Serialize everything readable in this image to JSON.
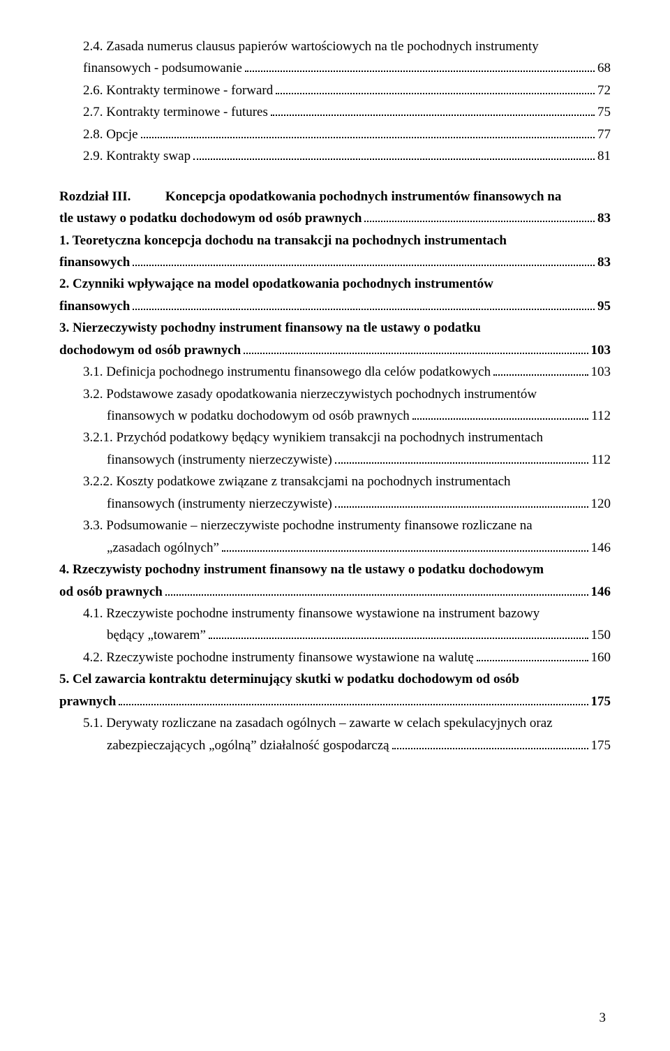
{
  "toc": [
    {
      "lvl": 1,
      "bold": false,
      "multi": [
        "2.4. Zasada numerus clausus papierów wartościowych na tle pochodnych instrumenty"
      ],
      "last": "finansowych - podsumowanie",
      "page": "68"
    },
    {
      "lvl": 1,
      "bold": false,
      "last": "2.6. Kontrakty terminowe - forward",
      "page": "72"
    },
    {
      "lvl": 1,
      "bold": false,
      "last": "2.7. Kontrakty terminowe - futures",
      "page": "75"
    },
    {
      "lvl": 1,
      "bold": false,
      "last": "2.8. Opcje",
      "page": "77"
    },
    {
      "lvl": 1,
      "bold": false,
      "last": "2.9. Kontrakty swap",
      "page": "81"
    }
  ],
  "chapter": {
    "label": "Rozdział III.",
    "title_multi": "Koncepcja opodatkowania pochodnych instrumentów finansowych na",
    "title_last": "tle ustawy o podatku dochodowym od osób prawnych",
    "page": "83"
  },
  "toc2": [
    {
      "lvl": 0,
      "bold": true,
      "multi": [
        "1.   Teoretyczna  koncepcja  dochodu  na  transakcji  na  pochodnych  instrumentach"
      ],
      "last": "finansowych",
      "page": "83"
    },
    {
      "lvl": 0,
      "bold": true,
      "multi": [
        "2.   Czynniki   wpływające   na   model   opodatkowania   pochodnych   instrumentów"
      ],
      "last": "finansowych",
      "page": "95"
    },
    {
      "lvl": 0,
      "bold": true,
      "multi": [
        "3.   Nierzeczywisty   pochodny   instrument   finansowy   na   tle   ustawy   o   podatku"
      ],
      "last": "dochodowym od osób prawnych",
      "page": "103"
    },
    {
      "lvl": 1,
      "bold": false,
      "last": "3.1. Definicja pochodnego instrumentu finansowego dla celów podatkowych",
      "page": "103"
    },
    {
      "lvl": 1,
      "bold": false,
      "multi": [
        "3.2.  Podstawowe  zasady  opodatkowania  nierzeczywistych  pochodnych  instrumentów"
      ],
      "last_indent": 2,
      "last": "finansowych w podatku dochodowym od osób prawnych",
      "page": "112"
    },
    {
      "lvl": 1,
      "bold": false,
      "multi": [
        "3.2.1. Przychód podatkowy będący wynikiem transakcji na pochodnych instrumentach"
      ],
      "last_indent": 2,
      "last": "finansowych (instrumenty nierzeczywiste)",
      "page": "112"
    },
    {
      "lvl": 1,
      "bold": false,
      "multi": [
        "3.2.2.  Koszty  podatkowe  związane  z  transakcjami  na  pochodnych  instrumentach"
      ],
      "last_indent": 2,
      "last": "finansowych (instrumenty nierzeczywiste)",
      "page": "120"
    },
    {
      "lvl": 1,
      "bold": false,
      "multi": [
        "3.3.  Podsumowanie  –  nierzeczywiste  pochodne  instrumenty  finansowe  rozliczane  na"
      ],
      "last_indent": 2,
      "last": "„zasadach ogólnych”",
      "page": "146"
    },
    {
      "lvl": 0,
      "bold": true,
      "multi": [
        "4.   Rzeczywisty pochodny instrument finansowy na tle ustawy o podatku dochodowym"
      ],
      "last": "od osób prawnych",
      "page": "146"
    },
    {
      "lvl": 1,
      "bold": false,
      "multi": [
        "4.1.  Rzeczywiste  pochodne  instrumenty  finansowe  wystawione  na  instrument  bazowy"
      ],
      "last_indent": 2,
      "last": "będący „towarem”",
      "page": "150"
    },
    {
      "lvl": 1,
      "bold": false,
      "last": "4.2. Rzeczywiste pochodne instrumenty finansowe wystawione na walutę",
      "page": "160"
    },
    {
      "lvl": 0,
      "bold": true,
      "multi": [
        "5.   Cel  zawarcia  kontraktu  determinujący  skutki  w  podatku  dochodowym  od  osób"
      ],
      "last": "prawnych",
      "page": "175"
    },
    {
      "lvl": 1,
      "bold": false,
      "multi": [
        "5.1.  Derywaty  rozliczane  na  zasadach  ogólnych  –  zawarte  w  celach  spekulacyjnych  oraz"
      ],
      "last_indent": 2,
      "last": "zabezpieczających „ogólną” działalność gospodarczą",
      "page": "175"
    }
  ],
  "pageNumber": "3"
}
